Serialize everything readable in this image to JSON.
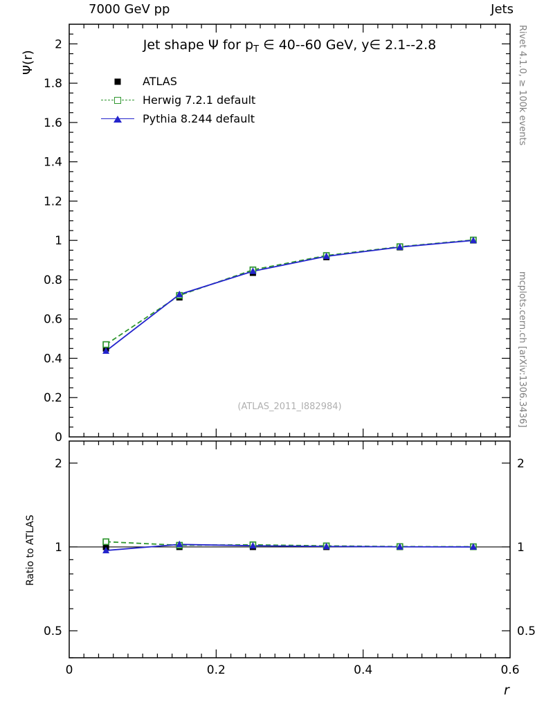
{
  "header": {
    "left": "7000 GeV pp",
    "right": "Jets"
  },
  "sidebar_right": {
    "top": "Rivet 4.1.0, ≥ 100k events",
    "bottom": "mcplots.cern.ch [arXiv:1306.3436]"
  },
  "chart_data": {
    "type": "line",
    "title_parts": {
      "pre": "Jet shape Ψ for p",
      "sub": "T",
      "post": " ∈ 40--60 GeV, y∈ 2.1--2.8"
    },
    "watermark": "(ATLAS_2011_I882984)",
    "xlabel": "r",
    "ylabel": "Ψ(r)",
    "ratio_label": "Ratio to ATLAS",
    "xlim": [
      0,
      0.6
    ],
    "ylim": [
      0,
      2.1
    ],
    "ratio_lim": [
      0.4,
      2.4
    ],
    "ratio_scale": "log",
    "xticks": [
      0,
      0.2,
      0.4,
      0.6
    ],
    "x_minor_step": 0.02,
    "yticks": [
      0,
      0.2,
      0.4,
      0.6,
      0.8,
      1,
      1.2,
      1.4,
      1.6,
      1.8,
      2
    ],
    "y_minor_step": 0.05,
    "ratio_ticks": [
      0.5,
      1,
      2
    ],
    "ratio_minor_ticks": [
      0.4,
      0.6,
      0.7,
      0.8,
      0.9
    ],
    "x": [
      0.05,
      0.15,
      0.25,
      0.35,
      0.45,
      0.55
    ],
    "series": [
      {
        "name": "ATLAS",
        "type": "data",
        "color": "#000000",
        "marker": "square-filled",
        "values": [
          0.45,
          0.71,
          0.835,
          0.915,
          0.965,
          1.0
        ],
        "errors": [
          0.02,
          0.012,
          0.01,
          0.008,
          0.006,
          0.005
        ]
      },
      {
        "name": "Herwig 7.2.1 default",
        "type": "mc",
        "color": "#2e962e",
        "marker": "square-open",
        "line": "dashed",
        "values": [
          0.47,
          0.72,
          0.85,
          0.923,
          0.968,
          1.002
        ],
        "ratio": [
          1.044,
          1.014,
          1.018,
          1.009,
          1.003,
          1.002
        ],
        "ratio_errors": [
          0.01,
          0.006,
          0.005,
          0.004,
          0.003,
          0.003
        ]
      },
      {
        "name": "Pythia 8.244 default",
        "type": "mc",
        "color": "#2424cc",
        "marker": "triangle-filled",
        "line": "solid",
        "values": [
          0.437,
          0.725,
          0.843,
          0.919,
          0.966,
          1.0
        ],
        "ratio": [
          0.971,
          1.021,
          1.01,
          1.004,
          1.001,
          1.0
        ],
        "ratio_errors": [
          0.012,
          0.007,
          0.005,
          0.004,
          0.003,
          0.003
        ]
      }
    ]
  }
}
